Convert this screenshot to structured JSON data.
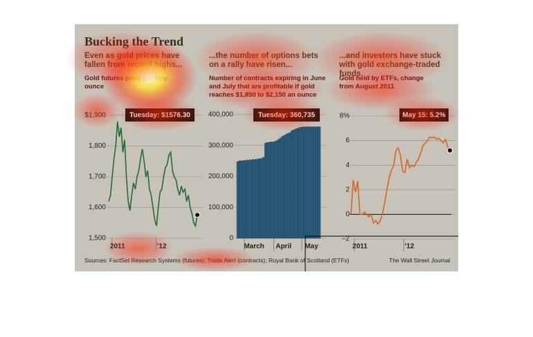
{
  "title": "Bucking the Trend",
  "source": "Sources: FactSet Research Systems (futures); Trade Alert (contracts); Royal Bank of Scotland (ETFs)",
  "credit": "The Wall Street Journal",
  "chart_data": [
    {
      "type": "line",
      "subtitle": "Even as gold prices have fallen from record highs...",
      "description": "Gold futures price per troy ounce",
      "annotation": "Tuesday: $1576.30",
      "color": "#1f6b3a",
      "grid": true,
      "ylim": [
        1500,
        1900
      ],
      "yticks": [
        {
          "value": 1900,
          "label": "$1,900"
        },
        {
          "value": 1800,
          "label": "1,800"
        },
        {
          "value": 1700,
          "label": "1,700"
        },
        {
          "value": 1600,
          "label": "1,600"
        },
        {
          "value": 1500,
          "label": "1,500"
        }
      ],
      "categories": [
        null,
        null,
        null,
        null,
        null,
        "2011",
        null,
        null,
        null,
        null,
        null,
        null,
        null,
        null,
        null,
        null,
        null,
        null,
        null,
        null,
        null,
        null,
        null,
        null,
        null,
        null,
        null,
        null,
        null,
        null,
        "'12",
        null,
        null,
        null,
        null,
        null,
        null,
        null,
        null,
        null,
        null,
        null,
        null,
        null,
        null,
        null,
        null,
        null,
        null,
        null,
        null
      ],
      "values": [
        1620,
        1640,
        1700,
        1760,
        1800,
        1880,
        1830,
        1860,
        1780,
        1820,
        1700,
        1620,
        1590,
        1640,
        1680,
        1660,
        1700,
        1720,
        1760,
        1790,
        1750,
        1700,
        1720,
        1660,
        1640,
        1600,
        1560,
        1540,
        1600,
        1650,
        1660,
        1700,
        1730,
        1740,
        1770,
        1780,
        1720,
        1700,
        1690,
        1660,
        1640,
        1670,
        1650,
        1660,
        1620,
        1640,
        1600,
        1580,
        1550,
        1540,
        1576
      ]
    },
    {
      "type": "bar",
      "subtitle": "...the number of options bets on a rally have risen...",
      "description": "Number of contracts expiring in June and July that are profitable if gold reaches $1,850 to $2,150 an ounce",
      "annotation": "Tuesday: 360,735",
      "color": "#2f5f80",
      "grid": true,
      "ylim": [
        0,
        400000
      ],
      "yticks": [
        {
          "value": 400000,
          "label": "400,000"
        },
        {
          "value": 300000,
          "label": "300,000"
        },
        {
          "value": 200000,
          "label": "200,000"
        },
        {
          "value": 100000,
          "label": "100,000"
        },
        0
      ],
      "categories": [
        null,
        null,
        null,
        null,
        null,
        null,
        null,
        null,
        "March",
        null,
        null,
        null,
        null,
        null,
        null,
        null,
        null,
        null,
        null,
        null,
        null,
        null,
        null,
        null,
        null,
        null,
        null,
        "April",
        null,
        null,
        null,
        null,
        null,
        null,
        null,
        null,
        null,
        null,
        null,
        null,
        null,
        null,
        null,
        null,
        null,
        "May",
        null,
        null,
        null,
        null,
        null,
        null,
        null,
        null
      ],
      "values": [
        248000,
        250000,
        251000,
        250000,
        252000,
        251000,
        253000,
        252000,
        254000,
        253000,
        255000,
        254000,
        256000,
        255000,
        258000,
        257000,
        260000,
        262000,
        308000,
        310000,
        310000,
        311000,
        312000,
        311000,
        313000,
        315000,
        318000,
        322000,
        325000,
        330000,
        332000,
        335000,
        338000,
        340000,
        342000,
        348000,
        350000,
        352000,
        355000,
        356000,
        358000,
        359000,
        360000,
        360500,
        360000,
        361000,
        360200,
        360700,
        360500,
        360900,
        360300,
        360600,
        360800,
        360735
      ]
    },
    {
      "type": "line",
      "subtitle": "...and investors have stuck with gold exchange-traded funds.",
      "description": "Gold held by ETFs, change from August 2011",
      "annotation": "May 15: 5.2%",
      "color": "#d2691e",
      "grid": true,
      "ylim": [
        -2,
        8
      ],
      "yticks": [
        {
          "value": 8,
          "label": "8%"
        },
        6,
        4,
        2,
        0,
        {
          "value": -2,
          "label": "–2"
        }
      ],
      "categories": [
        null,
        null,
        null,
        null,
        "2011",
        null,
        null,
        null,
        null,
        null,
        null,
        null,
        null,
        null,
        null,
        null,
        null,
        null,
        null,
        null,
        null,
        null,
        null,
        null,
        null,
        null,
        "'12",
        null,
        null,
        null,
        null,
        null,
        null,
        null,
        null,
        null,
        null,
        null,
        null,
        null,
        null,
        null,
        null,
        null,
        null
      ],
      "values": [
        0,
        2.8,
        1.8,
        2.7,
        0,
        0,
        0.2,
        0,
        -0.2,
        0,
        -0.7,
        -0.5,
        -0.8,
        -0.5,
        0,
        1,
        2,
        3,
        3.6,
        4,
        5.2,
        5.4,
        4.8,
        3.5,
        3.4,
        4.5,
        3.8,
        4.0,
        3.9,
        4.2,
        4.5,
        5.0,
        5.6,
        5.8,
        6.0,
        6.3,
        6.2,
        6.3,
        6.1,
        6.2,
        6.0,
        5.8,
        6.1,
        5.5,
        5.2
      ]
    }
  ]
}
